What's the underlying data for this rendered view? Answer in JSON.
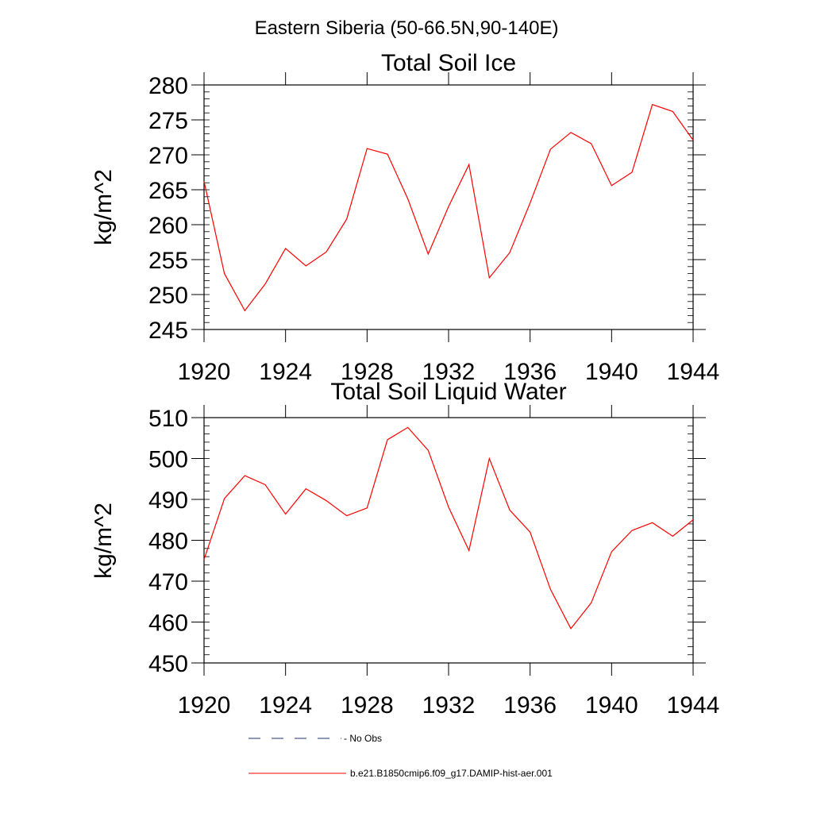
{
  "suptitle": "Eastern Siberia (50-66.5N,90-140E)",
  "colors": {
    "series_line": "#ff0000",
    "obs_line": "#1c2f6e",
    "axis": "#000000"
  },
  "legend": [
    {
      "label": "- No Obs",
      "style": "dashed",
      "color": "#1c2f6e"
    },
    {
      "label": "b.e21.B1850cmip6.f09_g17.DAMIP-hist-aer.001",
      "style": "solid",
      "color": "#ff0000"
    }
  ],
  "chart_data": [
    {
      "type": "line",
      "title": "Total Soil Ice",
      "ylabel": "kg/m^2",
      "xlabel": "",
      "xlim": [
        1920,
        1944
      ],
      "ylim": [
        245,
        280
      ],
      "xticks": [
        1920,
        1924,
        1928,
        1932,
        1936,
        1940,
        1944
      ],
      "yticks": [
        245,
        250,
        255,
        260,
        265,
        270,
        275,
        280
      ],
      "grid": false,
      "series": [
        {
          "x": [
            1920,
            1921,
            1922,
            1923,
            1924,
            1925,
            1926,
            1927,
            1928,
            1929,
            1930,
            1931,
            1932,
            1933,
            1934,
            1935,
            1936,
            1937,
            1938,
            1939,
            1940,
            1941,
            1942,
            1943,
            1944
          ],
          "values": [
            266.2,
            253.0,
            247.7,
            251.5,
            256.6,
            254.1,
            256.1,
            260.8,
            270.9,
            270.1,
            263.7,
            255.8,
            262.6,
            268.6,
            252.4,
            256.0,
            263.1,
            270.8,
            273.2,
            271.6,
            265.6,
            267.5,
            277.2,
            276.2,
            272.1
          ]
        }
      ]
    },
    {
      "type": "line",
      "title": "Total Soil Liquid Water",
      "ylabel": "kg/m^2",
      "xlabel": "",
      "xlim": [
        1920,
        1944
      ],
      "ylim": [
        450,
        510
      ],
      "xticks": [
        1920,
        1924,
        1928,
        1932,
        1936,
        1940,
        1944
      ],
      "yticks": [
        450,
        460,
        470,
        480,
        490,
        500,
        510
      ],
      "grid": false,
      "series": [
        {
          "x": [
            1920,
            1921,
            1922,
            1923,
            1924,
            1925,
            1926,
            1927,
            1928,
            1929,
            1930,
            1931,
            1932,
            1933,
            1934,
            1935,
            1936,
            1937,
            1938,
            1939,
            1940,
            1941,
            1942,
            1943,
            1944
          ],
          "values": [
            475.3,
            490.2,
            495.8,
            493.6,
            486.4,
            492.6,
            489.7,
            486.0,
            487.9,
            504.6,
            507.6,
            502.0,
            488.1,
            477.5,
            500.0,
            487.4,
            482.0,
            468.0,
            458.4,
            464.7,
            477.2,
            482.4,
            484.3,
            481.0,
            485.0
          ]
        }
      ]
    }
  ]
}
